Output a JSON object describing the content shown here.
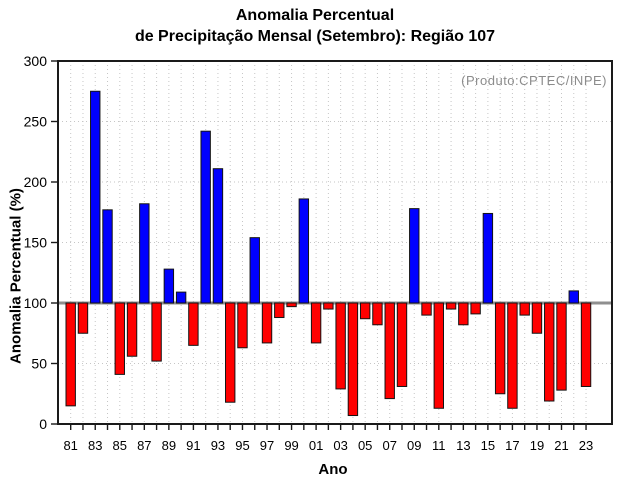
{
  "title": {
    "line1": "Anomalia Percentual",
    "line2": "de Precipitação Mensal (Setembro): Região 107"
  },
  "annotation": {
    "text": "(Produto:CPTEC/INPE)",
    "color": "#8c8c8c"
  },
  "chart_data": {
    "type": "bar",
    "title": "Anomalia Percentual de Precipitação Mensal (Setembro): Região 107",
    "xlabel": "Ano",
    "ylabel": "Anomalia Percentual (%)",
    "ylim": [
      0,
      300
    ],
    "yticks": [
      0,
      50,
      100,
      150,
      200,
      250,
      300
    ],
    "baseline": 100,
    "grid": true,
    "legend": "none",
    "x_label_every": 2,
    "categories": [
      "81",
      "82",
      "83",
      "84",
      "85",
      "86",
      "87",
      "88",
      "89",
      "90",
      "91",
      "92",
      "93",
      "94",
      "95",
      "96",
      "97",
      "98",
      "99",
      "00",
      "01",
      "02",
      "03",
      "04",
      "05",
      "06",
      "07",
      "08",
      "09",
      "10",
      "11",
      "12",
      "13",
      "14",
      "15",
      "16",
      "17",
      "18",
      "19",
      "20",
      "21",
      "22",
      "23"
    ],
    "values": [
      15,
      75,
      275,
      177,
      41,
      56,
      182,
      52,
      128,
      109,
      65,
      242,
      211,
      18,
      63,
      154,
      67,
      88,
      97,
      186,
      67,
      95,
      29,
      7,
      87,
      82,
      21,
      31,
      178,
      90,
      13,
      95,
      82,
      91,
      174,
      25,
      13,
      90,
      75,
      19,
      28,
      110,
      31
    ],
    "bar_colors": {
      "above": "#0000ff",
      "below": "#ff0000"
    }
  }
}
